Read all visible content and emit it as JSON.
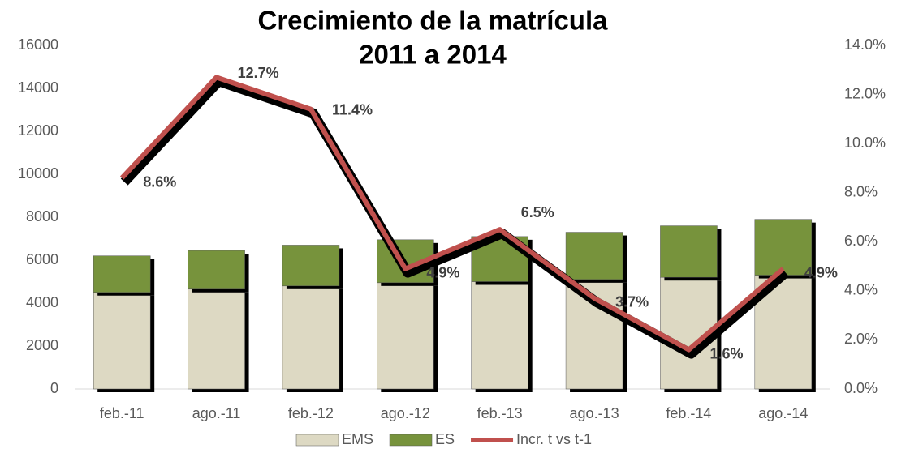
{
  "chart_data": {
    "type": "bar-line",
    "title": [
      "Crecimiento de la matrícula",
      "2011 a 2014"
    ],
    "categories": [
      "feb.-11",
      "ago.-11",
      "feb.-12",
      "ago.-12",
      "feb.-13",
      "ago.-13",
      "feb.-14",
      "ago.-14"
    ],
    "series": [
      {
        "name": "EMS",
        "color": "#ddd9c3",
        "values": [
          4500,
          4650,
          4800,
          4950,
          5000,
          5100,
          5200,
          5300
        ]
      },
      {
        "name": "ES",
        "color": "#77933c",
        "values": [
          1700,
          1800,
          1900,
          2000,
          2100,
          2200,
          2400,
          2600
        ]
      },
      {
        "name": "Incr. t vs t-1",
        "color": "#c0504d",
        "axis": "y2",
        "values": [
          8.6,
          12.7,
          11.4,
          4.9,
          6.5,
          3.7,
          1.6,
          4.9
        ],
        "value_labels": [
          "8.6%",
          "12.7%",
          "11.4%",
          "4.9%",
          "6.5%",
          "3.7%",
          "1.6%",
          "4.9%"
        ]
      }
    ],
    "ylim": [
      0,
      16000
    ],
    "yticks": [
      0,
      2000,
      4000,
      6000,
      8000,
      10000,
      12000,
      14000,
      16000
    ],
    "y2lim": [
      0,
      14
    ],
    "y2ticks": [
      {
        "value": 0,
        "label": "0.0%"
      },
      {
        "value": 2,
        "label": "2.0%"
      },
      {
        "value": 4,
        "label": "4.0%"
      },
      {
        "value": 6,
        "label": "6.0%"
      },
      {
        "value": 8,
        "label": "8.0%"
      },
      {
        "value": 10,
        "label": "10.0%"
      },
      {
        "value": 12,
        "label": "12.0%"
      },
      {
        "value": 14,
        "label": "14.0%"
      }
    ]
  }
}
